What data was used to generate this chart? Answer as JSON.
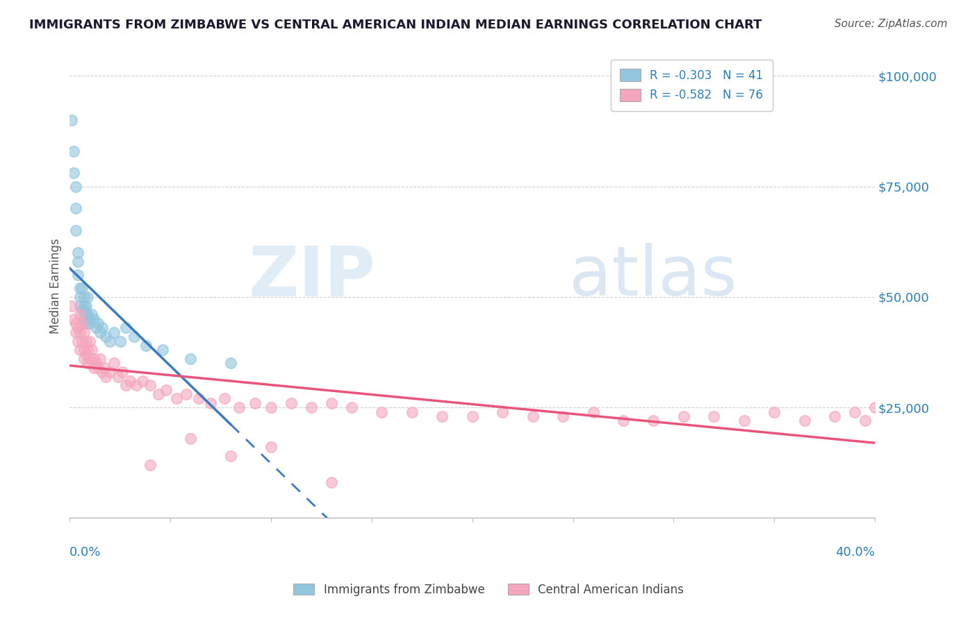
{
  "title": "IMMIGRANTS FROM ZIMBABWE VS CENTRAL AMERICAN INDIAN MEDIAN EARNINGS CORRELATION CHART",
  "source": "Source: ZipAtlas.com",
  "ylabel": "Median Earnings",
  "xlim": [
    0.0,
    0.4
  ],
  "ylim": [
    0,
    105000
  ],
  "yticks": [
    0,
    25000,
    50000,
    75000,
    100000
  ],
  "ytick_labels": [
    "",
    "$25,000",
    "$50,000",
    "$75,000",
    "$100,000"
  ],
  "legend_bottom": [
    "Immigrants from Zimbabwe",
    "Central American Indians"
  ],
  "zimbabwe_color": "#92c5de",
  "central_american_color": "#f4a6bc",
  "trend_zimbabwe_color": "#3a7bbf",
  "trend_central_color": "#e8547a",
  "watermark_zip": "ZIP",
  "watermark_atlas": "atlas",
  "zim_x": [
    0.001,
    0.002,
    0.002,
    0.003,
    0.003,
    0.003,
    0.004,
    0.004,
    0.004,
    0.005,
    0.005,
    0.005,
    0.006,
    0.006,
    0.007,
    0.007,
    0.007,
    0.007,
    0.008,
    0.008,
    0.008,
    0.009,
    0.009,
    0.01,
    0.01,
    0.011,
    0.012,
    0.013,
    0.014,
    0.015,
    0.016,
    0.018,
    0.02,
    0.022,
    0.025,
    0.028,
    0.032,
    0.038,
    0.046,
    0.06,
    0.08
  ],
  "zim_y": [
    90000,
    83000,
    78000,
    75000,
    70000,
    65000,
    60000,
    58000,
    55000,
    52000,
    50000,
    48000,
    47000,
    52000,
    50000,
    48000,
    47000,
    45000,
    48000,
    46000,
    44000,
    50000,
    46000,
    45000,
    44000,
    46000,
    45000,
    43000,
    44000,
    42000,
    43000,
    41000,
    40000,
    42000,
    40000,
    43000,
    41000,
    39000,
    38000,
    36000,
    35000
  ],
  "ca_x": [
    0.001,
    0.002,
    0.003,
    0.003,
    0.004,
    0.004,
    0.005,
    0.005,
    0.005,
    0.006,
    0.006,
    0.007,
    0.007,
    0.007,
    0.008,
    0.008,
    0.009,
    0.009,
    0.01,
    0.01,
    0.011,
    0.012,
    0.012,
    0.013,
    0.014,
    0.015,
    0.016,
    0.017,
    0.018,
    0.02,
    0.022,
    0.024,
    0.026,
    0.028,
    0.03,
    0.033,
    0.036,
    0.04,
    0.044,
    0.048,
    0.053,
    0.058,
    0.064,
    0.07,
    0.077,
    0.084,
    0.092,
    0.1,
    0.11,
    0.12,
    0.13,
    0.14,
    0.155,
    0.17,
    0.185,
    0.2,
    0.215,
    0.23,
    0.245,
    0.26,
    0.275,
    0.29,
    0.305,
    0.32,
    0.335,
    0.35,
    0.365,
    0.38,
    0.39,
    0.395,
    0.04,
    0.06,
    0.08,
    0.1,
    0.13,
    0.4
  ],
  "ca_y": [
    48000,
    45000,
    44000,
    42000,
    43000,
    40000,
    46000,
    42000,
    38000,
    44000,
    40000,
    42000,
    38000,
    36000,
    40000,
    37000,
    38000,
    35000,
    40000,
    36000,
    38000,
    36000,
    34000,
    35000,
    34000,
    36000,
    33000,
    34000,
    32000,
    33000,
    35000,
    32000,
    33000,
    30000,
    31000,
    30000,
    31000,
    30000,
    28000,
    29000,
    27000,
    28000,
    27000,
    26000,
    27000,
    25000,
    26000,
    25000,
    26000,
    25000,
    26000,
    25000,
    24000,
    24000,
    23000,
    23000,
    24000,
    23000,
    23000,
    24000,
    22000,
    22000,
    23000,
    23000,
    22000,
    24000,
    22000,
    23000,
    24000,
    22000,
    12000,
    18000,
    14000,
    16000,
    8000,
    25000
  ]
}
